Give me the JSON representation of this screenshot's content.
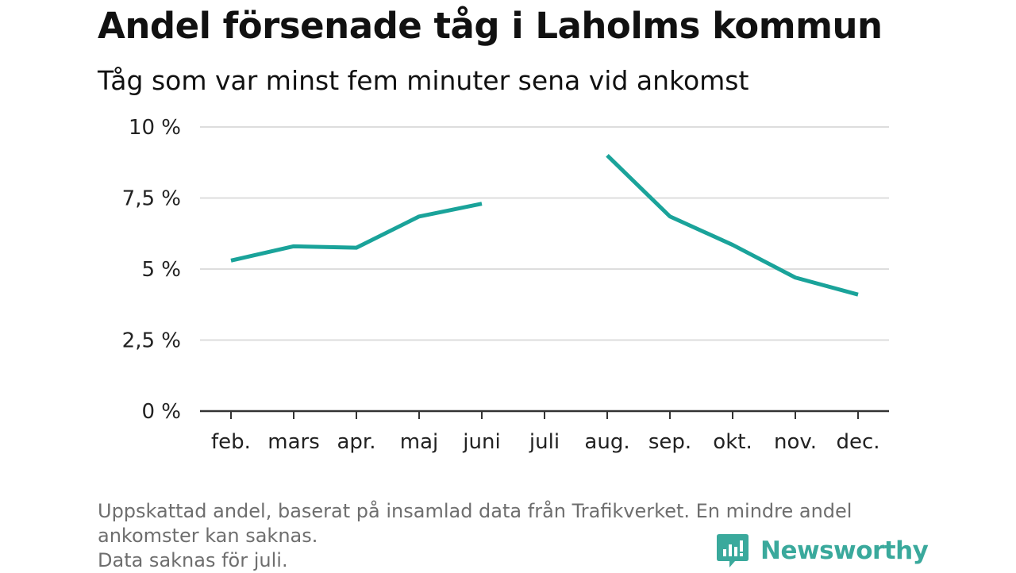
{
  "title": "Andel försenade tåg i Laholms kommun",
  "subtitle": "Tåg som var minst fem minuter sena vid ankomst",
  "chart_data": {
    "type": "line",
    "categories": [
      "feb.",
      "mars",
      "apr.",
      "maj",
      "juni",
      "juli",
      "aug.",
      "sep.",
      "okt.",
      "nov.",
      "dec."
    ],
    "series": [
      {
        "values": [
          5.3,
          5.8,
          5.75,
          6.85,
          7.3,
          null,
          9.0,
          6.85,
          5.85,
          4.7,
          4.1
        ]
      }
    ],
    "y_ticks": [
      0,
      2.5,
      5,
      7.5,
      10
    ],
    "y_tick_labels": [
      "0 %",
      "2,5 %",
      "5 %",
      "7,5 %",
      "10 %"
    ],
    "ylim": [
      0,
      10
    ],
    "grid": "horizontal",
    "line_color": "#1aa39a",
    "grid_color": "#dddddd",
    "axis_color": "#333333"
  },
  "footnote": {
    "line1": "Uppskattad andel, baserat på insamlad data från Trafikverket. En mindre andel",
    "line2": "ankomster kan saknas.",
    "line3": "Data saknas för juli."
  },
  "brand": {
    "name": "Newsworthy",
    "icon": "newsworthy-logo-icon",
    "color": "#3aa99c"
  }
}
